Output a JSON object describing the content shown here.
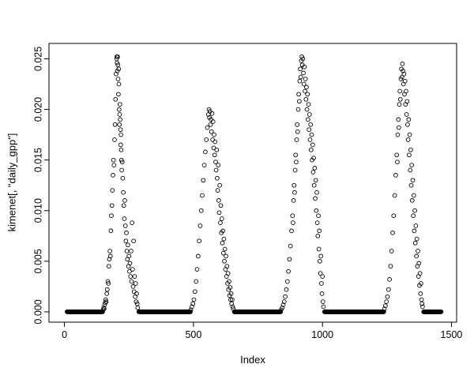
{
  "chart_data": {
    "type": "scatter",
    "title": "",
    "xlabel": "Index",
    "ylabel": "kimenet[, \"daily_gpp\"]",
    "marker": "open-circle",
    "marker_color": "#000000",
    "background": "#ffffff",
    "xlim": [
      -60,
      1520
    ],
    "ylim": [
      -0.00102,
      0.02652
    ],
    "x_ticks": [
      0,
      500,
      1000,
      1500
    ],
    "x_tick_labels": [
      "0",
      "500",
      "1000",
      "1500"
    ],
    "y_ticks": [
      0.0,
      0.005,
      0.01,
      0.015,
      0.02,
      0.025
    ],
    "y_tick_labels": [
      "0.000",
      "0.005",
      "0.010",
      "0.015",
      "0.020",
      "0.025"
    ],
    "grid": false,
    "legend": false,
    "zero_value": 0.0,
    "zero_runs": [
      [
        10,
        148
      ],
      [
        288,
        488
      ],
      [
        658,
        838
      ],
      [
        1008,
        1238
      ],
      [
        1392,
        1460
      ]
    ],
    "points": [
      [
        150,
        0.0002
      ],
      [
        152,
        0.0004
      ],
      [
        154,
        0.0003
      ],
      [
        156,
        0.0007
      ],
      [
        158,
        0.0009
      ],
      [
        160,
        0.0012
      ],
      [
        162,
        0.001
      ],
      [
        164,
        0.0018
      ],
      [
        166,
        0.0022
      ],
      [
        168,
        0.003
      ],
      [
        170,
        0.0028
      ],
      [
        172,
        0.0045
      ],
      [
        174,
        0.0052
      ],
      [
        176,
        0.006
      ],
      [
        178,
        0.0055
      ],
      [
        180,
        0.008
      ],
      [
        182,
        0.0095
      ],
      [
        184,
        0.0105
      ],
      [
        186,
        0.012
      ],
      [
        188,
        0.0135
      ],
      [
        190,
        0.015
      ],
      [
        192,
        0.0145
      ],
      [
        194,
        0.017
      ],
      [
        196,
        0.0185
      ],
      [
        198,
        0.021
      ],
      [
        200,
        0.0235
      ],
      [
        202,
        0.025
      ],
      [
        203,
        0.0252
      ],
      [
        204,
        0.0246
      ],
      [
        205,
        0.0238
      ],
      [
        206,
        0.0252
      ],
      [
        207,
        0.0244
      ],
      [
        208,
        0.023
      ],
      [
        209,
        0.0215
      ],
      [
        210,
        0.024
      ],
      [
        211,
        0.0225
      ],
      [
        212,
        0.02
      ],
      [
        213,
        0.0185
      ],
      [
        214,
        0.0195
      ],
      [
        215,
        0.0205
      ],
      [
        216,
        0.019
      ],
      [
        217,
        0.018
      ],
      [
        218,
        0.0165
      ],
      [
        219,
        0.0175
      ],
      [
        220,
        0.016
      ],
      [
        221,
        0.015
      ],
      [
        222,
        0.014
      ],
      [
        224,
        0.0148
      ],
      [
        226,
        0.0132
      ],
      [
        228,
        0.0118
      ],
      [
        230,
        0.0105
      ],
      [
        232,
        0.0092
      ],
      [
        234,
        0.011
      ],
      [
        236,
        0.0085
      ],
      [
        238,
        0.007
      ],
      [
        240,
        0.0078
      ],
      [
        242,
        0.006
      ],
      [
        244,
        0.0052
      ],
      [
        246,
        0.0066
      ],
      [
        248,
        0.0045
      ],
      [
        250,
        0.0055
      ],
      [
        252,
        0.004
      ],
      [
        254,
        0.0048
      ],
      [
        256,
        0.0035
      ],
      [
        258,
        0.006
      ],
      [
        260,
        0.003
      ],
      [
        262,
        0.0088
      ],
      [
        264,
        0.0042
      ],
      [
        266,
        0.0025
      ],
      [
        268,
        0.007
      ],
      [
        270,
        0.002
      ],
      [
        272,
        0.0035
      ],
      [
        274,
        0.0015
      ],
      [
        276,
        0.0028
      ],
      [
        278,
        0.001
      ],
      [
        280,
        0.0018
      ],
      [
        282,
        0.0008
      ],
      [
        284,
        0.0004
      ],
      [
        490,
        0.0002
      ],
      [
        494,
        0.0005
      ],
      [
        498,
        0.0008
      ],
      [
        502,
        0.0012
      ],
      [
        506,
        0.002
      ],
      [
        510,
        0.003
      ],
      [
        514,
        0.0042
      ],
      [
        518,
        0.0055
      ],
      [
        522,
        0.007
      ],
      [
        526,
        0.0085
      ],
      [
        530,
        0.01
      ],
      [
        534,
        0.0115
      ],
      [
        538,
        0.013
      ],
      [
        542,
        0.0145
      ],
      [
        546,
        0.0158
      ],
      [
        550,
        0.017
      ],
      [
        554,
        0.0182
      ],
      [
        558,
        0.0195
      ],
      [
        560,
        0.02
      ],
      [
        562,
        0.0192
      ],
      [
        564,
        0.0198
      ],
      [
        566,
        0.0185
      ],
      [
        568,
        0.019
      ],
      [
        570,
        0.0178
      ],
      [
        572,
        0.0196
      ],
      [
        574,
        0.017
      ],
      [
        576,
        0.0188
      ],
      [
        578,
        0.0162
      ],
      [
        580,
        0.0175
      ],
      [
        582,
        0.0155
      ],
      [
        584,
        0.0168
      ],
      [
        586,
        0.0148
      ],
      [
        588,
        0.014
      ],
      [
        590,
        0.016
      ],
      [
        592,
        0.0132
      ],
      [
        594,
        0.012
      ],
      [
        596,
        0.0145
      ],
      [
        598,
        0.011
      ],
      [
        600,
        0.0098
      ],
      [
        602,
        0.0125
      ],
      [
        604,
        0.0088
      ],
      [
        606,
        0.0105
      ],
      [
        608,
        0.0078
      ],
      [
        610,
        0.0092
      ],
      [
        612,
        0.0068
      ],
      [
        614,
        0.008
      ],
      [
        616,
        0.0058
      ],
      [
        618,
        0.0072
      ],
      [
        620,
        0.005
      ],
      [
        622,
        0.0062
      ],
      [
        624,
        0.0042
      ],
      [
        626,
        0.0055
      ],
      [
        628,
        0.0035
      ],
      [
        630,
        0.0045
      ],
      [
        632,
        0.0028
      ],
      [
        634,
        0.0038
      ],
      [
        636,
        0.0022
      ],
      [
        638,
        0.003
      ],
      [
        640,
        0.0016
      ],
      [
        642,
        0.0024
      ],
      [
        644,
        0.0012
      ],
      [
        646,
        0.0018
      ],
      [
        648,
        0.0008
      ],
      [
        650,
        0.0012
      ],
      [
        652,
        0.0005
      ],
      [
        654,
        0.0003
      ],
      [
        840,
        0.0002
      ],
      [
        844,
        0.0004
      ],
      [
        848,
        0.0007
      ],
      [
        852,
        0.001
      ],
      [
        856,
        0.0015
      ],
      [
        860,
        0.0022
      ],
      [
        864,
        0.003
      ],
      [
        868,
        0.004
      ],
      [
        872,
        0.0052
      ],
      [
        876,
        0.0065
      ],
      [
        880,
        0.008
      ],
      [
        884,
        0.0095
      ],
      [
        886,
        0.0088
      ],
      [
        888,
        0.011
      ],
      [
        890,
        0.0125
      ],
      [
        892,
        0.0118
      ],
      [
        894,
        0.014
      ],
      [
        896,
        0.0155
      ],
      [
        898,
        0.0148
      ],
      [
        900,
        0.017
      ],
      [
        902,
        0.0185
      ],
      [
        904,
        0.0178
      ],
      [
        906,
        0.02
      ],
      [
        908,
        0.0215
      ],
      [
        910,
        0.0208
      ],
      [
        912,
        0.0228
      ],
      [
        914,
        0.024
      ],
      [
        916,
        0.0232
      ],
      [
        918,
        0.0248
      ],
      [
        920,
        0.0252
      ],
      [
        922,
        0.0244
      ],
      [
        924,
        0.025
      ],
      [
        926,
        0.0236
      ],
      [
        928,
        0.0225
      ],
      [
        930,
        0.0242
      ],
      [
        932,
        0.0218
      ],
      [
        934,
        0.023
      ],
      [
        936,
        0.021
      ],
      [
        938,
        0.0222
      ],
      [
        940,
        0.02
      ],
      [
        942,
        0.0215
      ],
      [
        944,
        0.019
      ],
      [
        946,
        0.0205
      ],
      [
        948,
        0.018
      ],
      [
        950,
        0.0195
      ],
      [
        952,
        0.017
      ],
      [
        954,
        0.0185
      ],
      [
        956,
        0.016
      ],
      [
        958,
        0.0175
      ],
      [
        960,
        0.015
      ],
      [
        962,
        0.0165
      ],
      [
        964,
        0.0138
      ],
      [
        966,
        0.0152
      ],
      [
        968,
        0.0125
      ],
      [
        970,
        0.0142
      ],
      [
        972,
        0.0112
      ],
      [
        974,
        0.013
      ],
      [
        976,
        0.01
      ],
      [
        978,
        0.0118
      ],
      [
        980,
        0.0088
      ],
      [
        982,
        0.0075
      ],
      [
        984,
        0.0095
      ],
      [
        986,
        0.0062
      ],
      [
        988,
        0.008
      ],
      [
        990,
        0.005
      ],
      [
        992,
        0.0038
      ],
      [
        994,
        0.0055
      ],
      [
        996,
        0.0028
      ],
      [
        998,
        0.0018
      ],
      [
        1000,
        0.0035
      ],
      [
        1002,
        0.001
      ],
      [
        1004,
        0.0005
      ],
      [
        1240,
        0.0003
      ],
      [
        1244,
        0.0006
      ],
      [
        1248,
        0.001
      ],
      [
        1252,
        0.0015
      ],
      [
        1256,
        0.0022
      ],
      [
        1260,
        0.0032
      ],
      [
        1264,
        0.0045
      ],
      [
        1268,
        0.006
      ],
      [
        1272,
        0.0078
      ],
      [
        1276,
        0.0095
      ],
      [
        1280,
        0.0115
      ],
      [
        1284,
        0.0135
      ],
      [
        1288,
        0.0155
      ],
      [
        1290,
        0.0148
      ],
      [
        1292,
        0.0175
      ],
      [
        1294,
        0.019
      ],
      [
        1296,
        0.0182
      ],
      [
        1298,
        0.0205
      ],
      [
        1300,
        0.0218
      ],
      [
        1302,
        0.021
      ],
      [
        1304,
        0.023
      ],
      [
        1306,
        0.024
      ],
      [
        1308,
        0.0232
      ],
      [
        1310,
        0.0245
      ],
      [
        1312,
        0.0238
      ],
      [
        1314,
        0.0225
      ],
      [
        1316,
        0.0235
      ],
      [
        1318,
        0.0215
      ],
      [
        1320,
        0.0228
      ],
      [
        1322,
        0.0205
      ],
      [
        1324,
        0.0218
      ],
      [
        1326,
        0.0195
      ],
      [
        1328,
        0.0208
      ],
      [
        1330,
        0.0185
      ],
      [
        1332,
        0.017
      ],
      [
        1334,
        0.019
      ],
      [
        1336,
        0.0155
      ],
      [
        1338,
        0.0175
      ],
      [
        1340,
        0.014
      ],
      [
        1342,
        0.016
      ],
      [
        1344,
        0.0125
      ],
      [
        1346,
        0.0145
      ],
      [
        1348,
        0.011
      ],
      [
        1350,
        0.013
      ],
      [
        1352,
        0.0095
      ],
      [
        1354,
        0.0115
      ],
      [
        1356,
        0.008
      ],
      [
        1358,
        0.01
      ],
      [
        1360,
        0.0068
      ],
      [
        1362,
        0.0085
      ],
      [
        1364,
        0.0055
      ],
      [
        1366,
        0.0072
      ],
      [
        1368,
        0.0045
      ],
      [
        1370,
        0.006
      ],
      [
        1372,
        0.0035
      ],
      [
        1374,
        0.0048
      ],
      [
        1376,
        0.0026
      ],
      [
        1378,
        0.0038
      ],
      [
        1380,
        0.0018
      ],
      [
        1382,
        0.0028
      ],
      [
        1384,
        0.0012
      ],
      [
        1386,
        0.0008
      ],
      [
        1388,
        0.0005
      ]
    ]
  }
}
